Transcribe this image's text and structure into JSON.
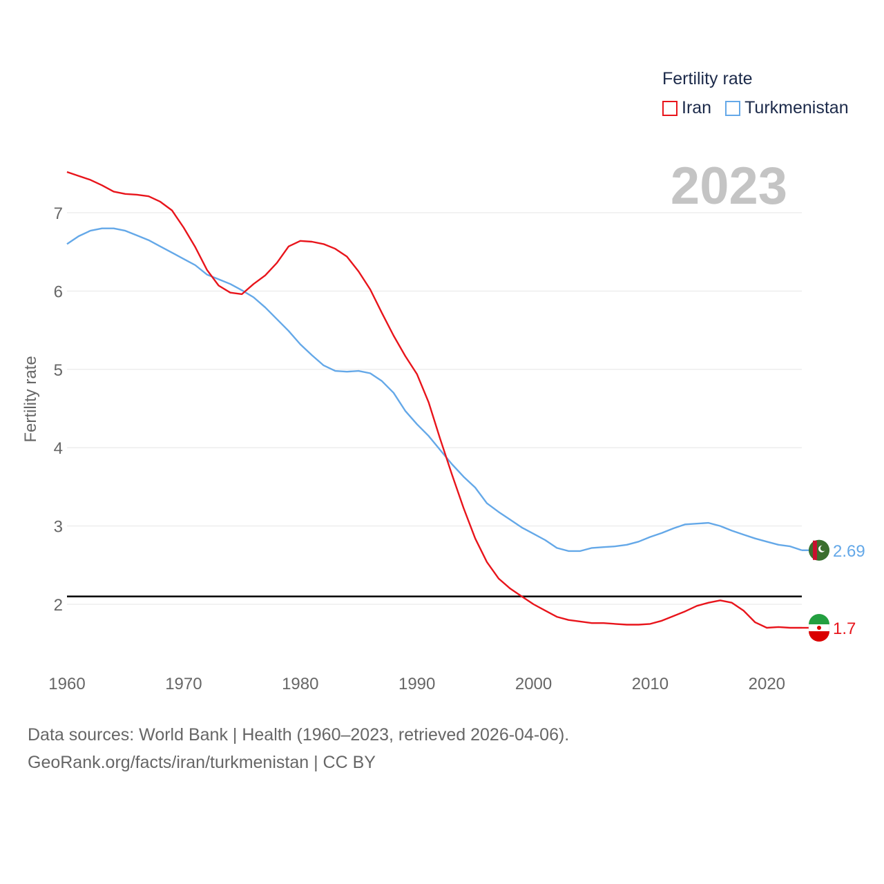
{
  "legend": {
    "title": "Fertility rate",
    "items": [
      {
        "label": "Iran",
        "color": "#e8141b"
      },
      {
        "label": "Turkmenistan",
        "color": "#64a8e8"
      }
    ]
  },
  "year_label": "2023",
  "footer": {
    "line1": "Data sources: World Bank | Health (1960–2023, retrieved 2026-04-06).",
    "line2": "GeoRank.org/facts/iran/turkmenistan | CC BY"
  },
  "chart_data": {
    "type": "line",
    "title": "",
    "xlabel": "",
    "ylabel": "Fertility rate",
    "xlim": [
      1960,
      2023
    ],
    "ylim": [
      1.5,
      7.5
    ],
    "x_ticks": [
      "1960",
      "1970",
      "1980",
      "1990",
      "2000",
      "2010",
      "2020"
    ],
    "y_ticks": [
      "2",
      "3",
      "4",
      "5",
      "6",
      "7"
    ],
    "reference_line": 2.1,
    "x": [
      1960,
      1961,
      1962,
      1963,
      1964,
      1965,
      1966,
      1967,
      1968,
      1969,
      1970,
      1971,
      1972,
      1973,
      1974,
      1975,
      1976,
      1977,
      1978,
      1979,
      1980,
      1981,
      1982,
      1983,
      1984,
      1985,
      1986,
      1987,
      1988,
      1989,
      1990,
      1991,
      1992,
      1993,
      1994,
      1995,
      1996,
      1997,
      1998,
      1999,
      2000,
      2001,
      2002,
      2003,
      2004,
      2005,
      2006,
      2007,
      2008,
      2009,
      2010,
      2011,
      2012,
      2013,
      2014,
      2015,
      2016,
      2017,
      2018,
      2019,
      2020,
      2021,
      2022,
      2023
    ],
    "series": [
      {
        "name": "Iran",
        "color": "#e8141b",
        "end_label": "1.7",
        "values": [
          7.52,
          7.47,
          7.42,
          7.35,
          7.27,
          7.24,
          7.23,
          7.21,
          7.14,
          7.03,
          6.81,
          6.56,
          6.27,
          6.07,
          5.98,
          5.96,
          6.09,
          6.2,
          6.36,
          6.57,
          6.64,
          6.63,
          6.6,
          6.54,
          6.44,
          6.25,
          6.02,
          5.72,
          5.43,
          5.17,
          4.94,
          4.58,
          4.11,
          3.66,
          3.23,
          2.84,
          2.54,
          2.33,
          2.2,
          2.1,
          2.0,
          1.92,
          1.84,
          1.8,
          1.78,
          1.76,
          1.76,
          1.75,
          1.74,
          1.74,
          1.75,
          1.79,
          1.85,
          1.91,
          1.98,
          2.02,
          2.05,
          2.02,
          1.92,
          1.77,
          1.7,
          1.71,
          1.7,
          1.7
        ]
      },
      {
        "name": "Turkmenistan",
        "color": "#64a8e8",
        "end_label": "2.69",
        "values": [
          6.6,
          6.7,
          6.77,
          6.8,
          6.8,
          6.77,
          6.71,
          6.65,
          6.57,
          6.49,
          6.41,
          6.33,
          6.21,
          6.15,
          6.09,
          6.01,
          5.92,
          5.79,
          5.64,
          5.49,
          5.32,
          5.18,
          5.05,
          4.98,
          4.97,
          4.98,
          4.95,
          4.85,
          4.7,
          4.47,
          4.3,
          4.15,
          3.97,
          3.79,
          3.63,
          3.49,
          3.29,
          3.18,
          3.08,
          2.98,
          2.9,
          2.82,
          2.72,
          2.68,
          2.68,
          2.72,
          2.73,
          2.74,
          2.76,
          2.8,
          2.86,
          2.91,
          2.97,
          3.02,
          3.03,
          3.04,
          3.0,
          2.94,
          2.89,
          2.84,
          2.8,
          2.76,
          2.74,
          2.69
        ]
      }
    ]
  }
}
